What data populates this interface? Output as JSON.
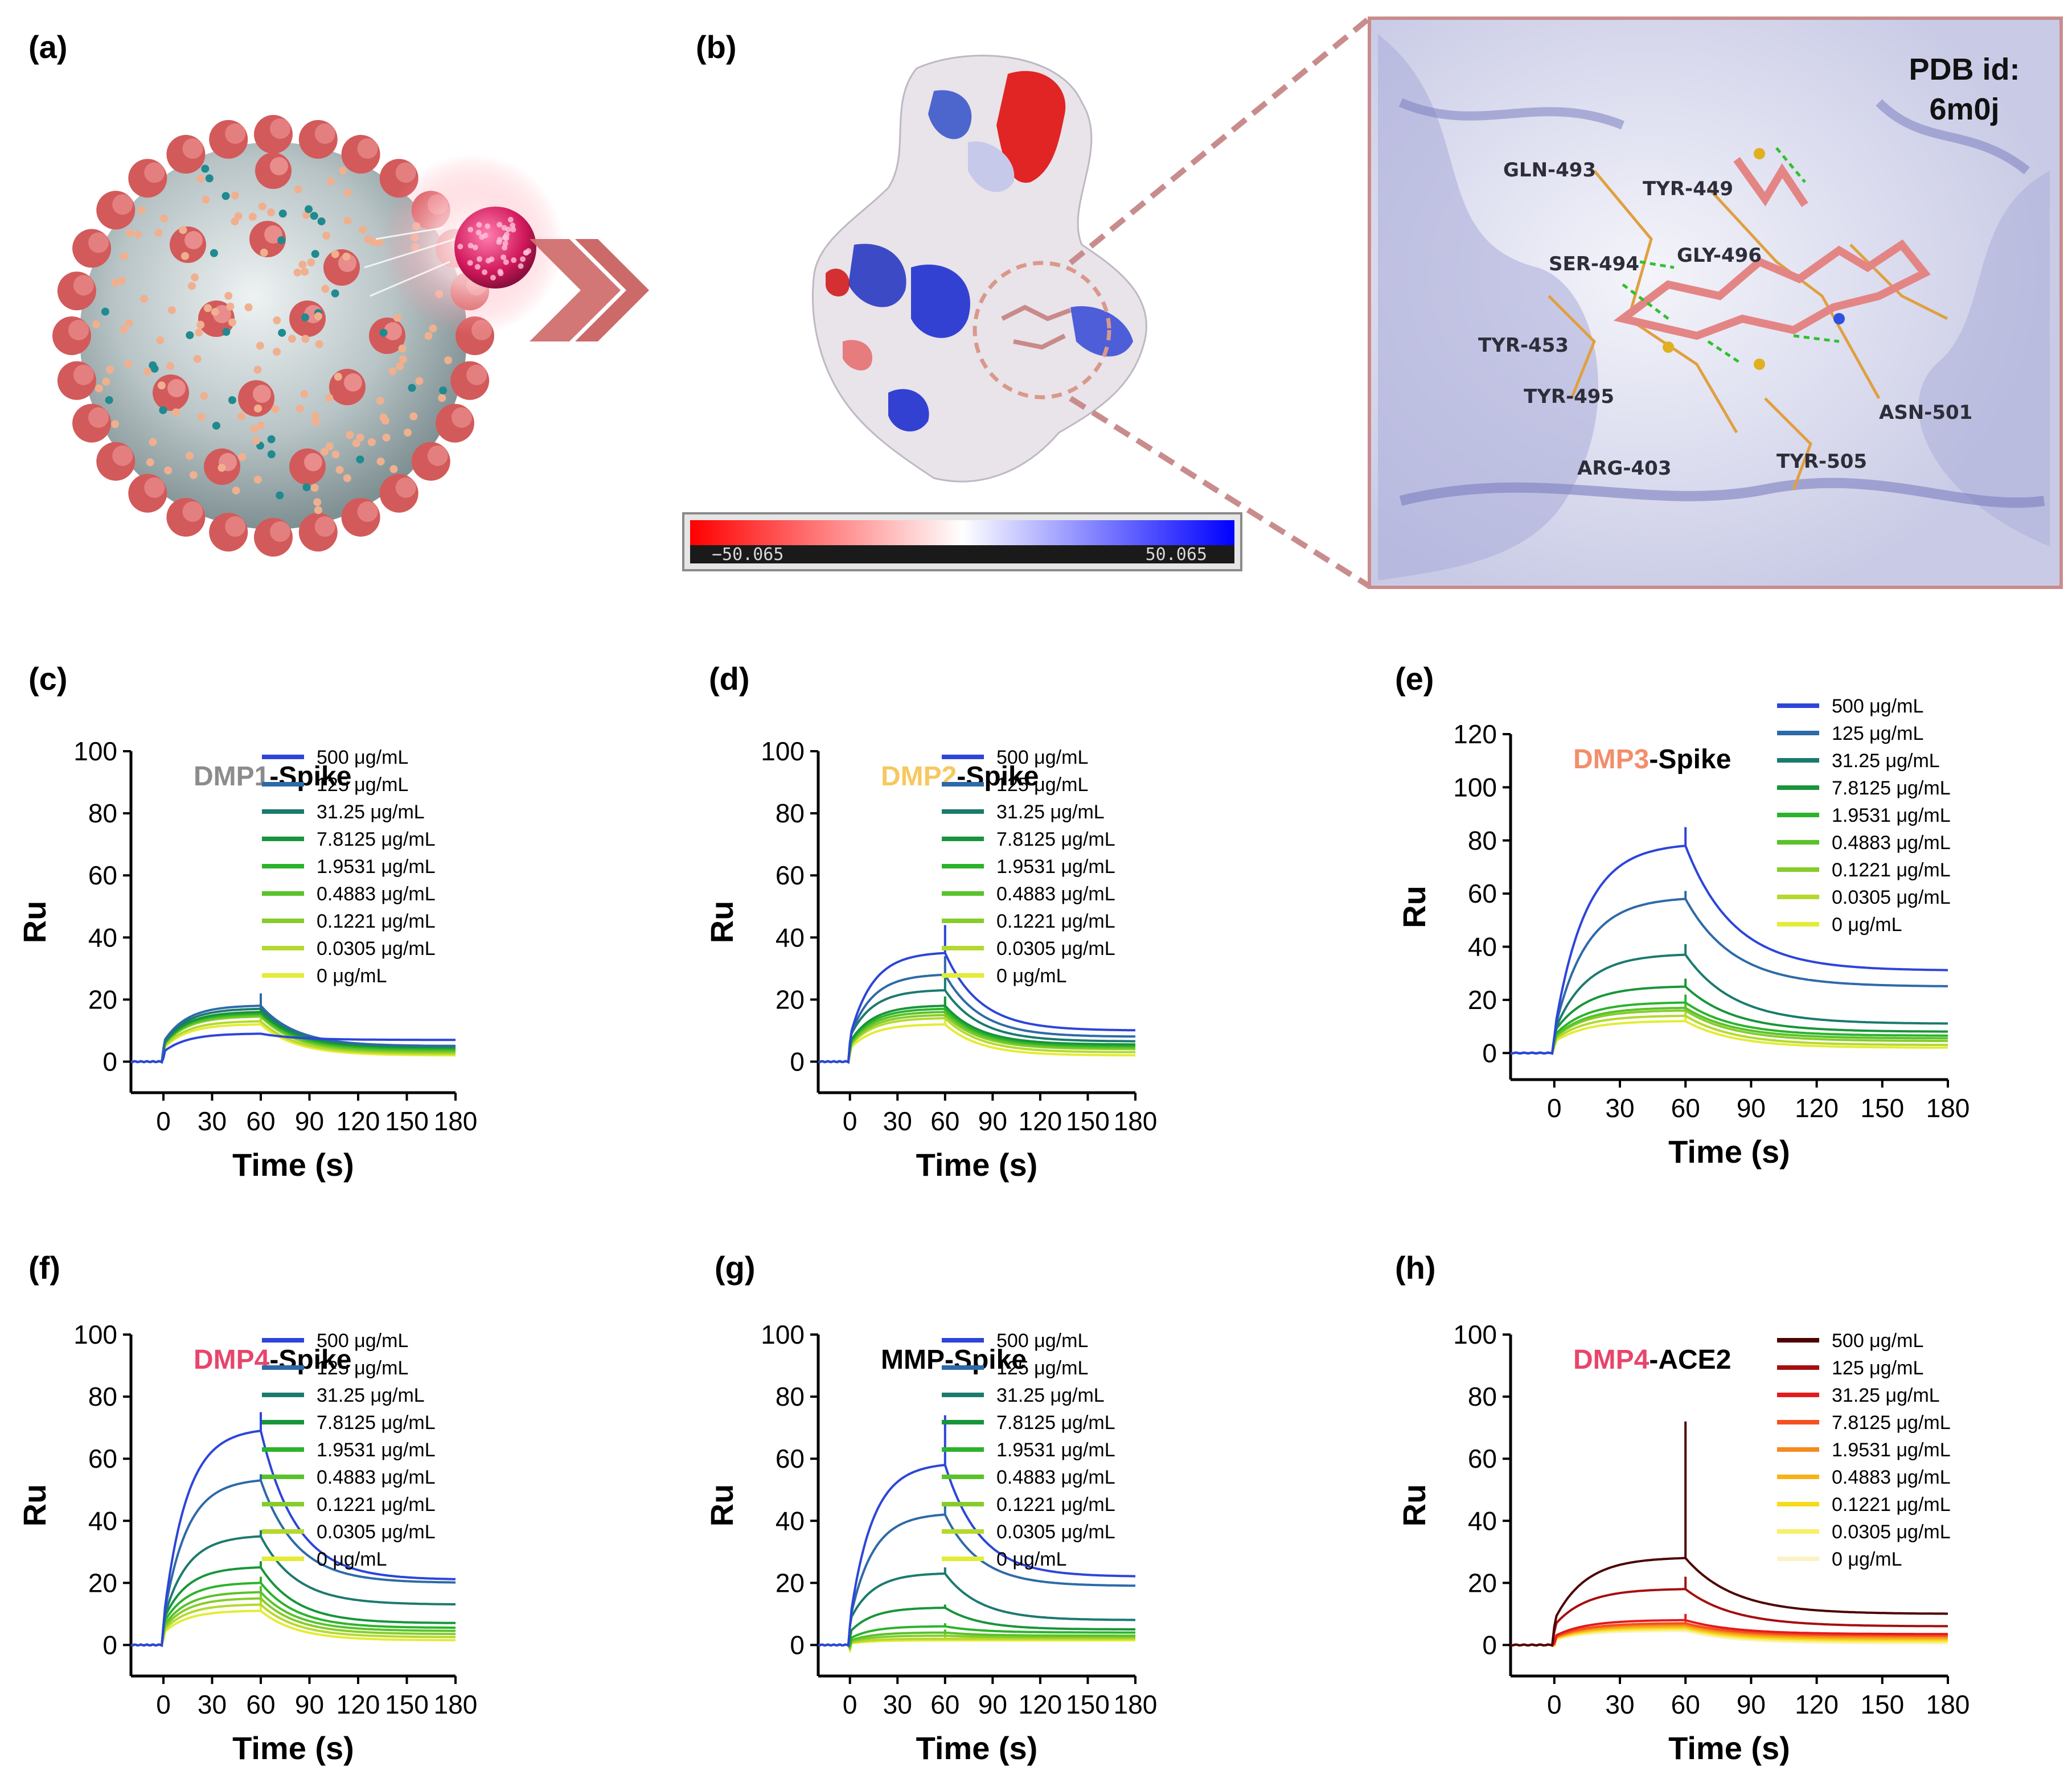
{
  "panels": {
    "a": "(a)",
    "b": "(b)",
    "c": "(c)",
    "d": "(d)",
    "e": "(e)",
    "f": "(f)",
    "g": "(g)",
    "h": "(h)"
  },
  "colorbar": {
    "min_label": "−50.065",
    "max_label": "50.065",
    "min": -50.065,
    "max": 50.065,
    "colors": [
      "#ff0000",
      "#ffffff",
      "#0000ff"
    ]
  },
  "pdb": {
    "line1": "PDB id:",
    "line2": "6m0j"
  },
  "residues": [
    "GLN-493",
    "TYR-449",
    "SER-494",
    "GLY-496",
    "TYR-453",
    "TYR-495",
    "ASN-501",
    "ARG-403",
    "TYR-505"
  ],
  "colors": {
    "frame": "#c98c8c",
    "dmp1": "#8c8c8c",
    "dmp2": "#f7c85f",
    "dmp3": "#f28e6b",
    "dmp4": "#e8456c",
    "black": "#000000",
    "blue_green": [
      "#2d45d9",
      "#2d6aa8",
      "#1b7a6e",
      "#18953a",
      "#2bb32b",
      "#5ac22a",
      "#86cc2b",
      "#b4d92e",
      "#e3ec36"
    ],
    "reds": [
      "#4d0000",
      "#a50f0f",
      "#e41a1c",
      "#f5501e",
      "#f58a1f",
      "#f7b21a",
      "#f7da1a",
      "#f7ef6a",
      "#fbf3c6"
    ]
  },
  "chart_data": [
    {
      "id": "c",
      "type": "line",
      "title_prefix": "DMP1",
      "title_suffix": "-Spike",
      "prefix_color": "#8c8c8c",
      "xlabel": "Time (s)",
      "ylabel": "Ru",
      "xlim": [
        -20,
        180
      ],
      "ylim": [
        -10,
        100
      ],
      "xticks": [
        0,
        30,
        60,
        90,
        120,
        150,
        180
      ],
      "yticks": [
        0,
        20,
        40,
        60,
        80,
        100
      ],
      "legend_position": "top-right",
      "palette": "blue_green",
      "series": [
        {
          "name": "500 μg/mL",
          "assoc": 9,
          "dissoc": 7,
          "spike": 0
        },
        {
          "name": "125 μg/mL",
          "assoc": 18,
          "dissoc": 5,
          "spike": 4
        },
        {
          "name": "31.25 μg/mL",
          "assoc": 17,
          "dissoc": 5,
          "spike": 3
        },
        {
          "name": "7.8125 μg/mL",
          "assoc": 16,
          "dissoc": 4.5,
          "spike": 3
        },
        {
          "name": "1.9531 μg/mL",
          "assoc": 15.5,
          "dissoc": 4,
          "spike": 3
        },
        {
          "name": "0.4883 μg/mL",
          "assoc": 15,
          "dissoc": 3.5,
          "spike": 2
        },
        {
          "name": "0.1221 μg/mL",
          "assoc": 14.5,
          "dissoc": 3,
          "spike": 2
        },
        {
          "name": "0.0305 μg/mL",
          "assoc": 13,
          "dissoc": 2.5,
          "spike": 2
        },
        {
          "name": "0 μg/mL",
          "assoc": 12,
          "dissoc": 2,
          "spike": 2
        }
      ]
    },
    {
      "id": "d",
      "type": "line",
      "title_prefix": "DMP2",
      "title_suffix": "-Spike",
      "prefix_color": "#f7c85f",
      "xlabel": "Time (s)",
      "ylabel": "Ru",
      "xlim": [
        -20,
        180
      ],
      "ylim": [
        -10,
        100
      ],
      "xticks": [
        0,
        30,
        60,
        90,
        120,
        150,
        180
      ],
      "yticks": [
        0,
        20,
        40,
        60,
        80,
        100
      ],
      "legend_position": "top-right",
      "palette": "blue_green",
      "series": [
        {
          "name": "500 μg/mL",
          "assoc": 35,
          "dissoc": 10,
          "spike": 9
        },
        {
          "name": "125 μg/mL",
          "assoc": 28,
          "dissoc": 8,
          "spike": 6
        },
        {
          "name": "31.25 μg/mL",
          "assoc": 23,
          "dissoc": 6.5,
          "spike": 4
        },
        {
          "name": "7.8125 μg/mL",
          "assoc": 18,
          "dissoc": 5.5,
          "spike": 3
        },
        {
          "name": "1.9531 μg/mL",
          "assoc": 17,
          "dissoc": 5,
          "spike": 3
        },
        {
          "name": "0.4883 μg/mL",
          "assoc": 16,
          "dissoc": 4.5,
          "spike": 2
        },
        {
          "name": "0.1221 μg/mL",
          "assoc": 15,
          "dissoc": 4,
          "spike": 2
        },
        {
          "name": "0.0305 μg/mL",
          "assoc": 14,
          "dissoc": 3,
          "spike": 2
        },
        {
          "name": "0 μg/mL",
          "assoc": 12,
          "dissoc": 2,
          "spike": 2
        }
      ]
    },
    {
      "id": "e",
      "type": "line",
      "title_prefix": "DMP3",
      "title_suffix": "-Spike",
      "prefix_color": "#f28e6b",
      "xlabel": "Time (s)",
      "ylabel": "Ru",
      "xlim": [
        -20,
        180
      ],
      "ylim": [
        -10,
        120
      ],
      "xticks": [
        0,
        30,
        60,
        90,
        120,
        150,
        180
      ],
      "yticks": [
        0,
        20,
        40,
        60,
        80,
        100,
        120
      ],
      "legend_position": "top-right",
      "palette": "blue_green",
      "series": [
        {
          "name": "500 μg/mL",
          "assoc": 78,
          "dissoc": 31,
          "spike": 7
        },
        {
          "name": "125 μg/mL",
          "assoc": 58,
          "dissoc": 25,
          "spike": 3
        },
        {
          "name": "31.25 μg/mL",
          "assoc": 37,
          "dissoc": 11,
          "spike": 4
        },
        {
          "name": "7.8125 μg/mL",
          "assoc": 25,
          "dissoc": 8,
          "spike": 3
        },
        {
          "name": "1.9531 μg/mL",
          "assoc": 19,
          "dissoc": 6.5,
          "spike": 3
        },
        {
          "name": "0.4883 μg/mL",
          "assoc": 17,
          "dissoc": 5.5,
          "spike": 2
        },
        {
          "name": "0.1221 μg/mL",
          "assoc": 16,
          "dissoc": 4.5,
          "spike": 2
        },
        {
          "name": "0.0305 μg/mL",
          "assoc": 14,
          "dissoc": 3,
          "spike": 2
        },
        {
          "name": "0 μg/mL",
          "assoc": 12,
          "dissoc": 2,
          "spike": 2
        }
      ]
    },
    {
      "id": "f",
      "type": "line",
      "title_prefix": "DMP4",
      "title_suffix": "-Spike",
      "prefix_color": "#e8456c",
      "xlabel": "Time (s)",
      "ylabel": "Ru",
      "xlim": [
        -20,
        180
      ],
      "ylim": [
        -10,
        100
      ],
      "xticks": [
        0,
        30,
        60,
        90,
        120,
        150,
        180
      ],
      "yticks": [
        0,
        20,
        40,
        60,
        80,
        100
      ],
      "legend_position": "top-right",
      "palette": "blue_green",
      "series": [
        {
          "name": "500 μg/mL",
          "assoc": 69,
          "dissoc": 21,
          "spike": 6
        },
        {
          "name": "125 μg/mL",
          "assoc": 53,
          "dissoc": 20,
          "spike": 2
        },
        {
          "name": "31.25 μg/mL",
          "assoc": 35,
          "dissoc": 13,
          "spike": 2
        },
        {
          "name": "7.8125 μg/mL",
          "assoc": 25,
          "dissoc": 7,
          "spike": 2
        },
        {
          "name": "1.9531 μg/mL",
          "assoc": 20,
          "dissoc": 5.5,
          "spike": 2
        },
        {
          "name": "0.4883 μg/mL",
          "assoc": 17,
          "dissoc": 4.5,
          "spike": 2
        },
        {
          "name": "0.1221 μg/mL",
          "assoc": 15,
          "dissoc": 3.5,
          "spike": 2
        },
        {
          "name": "0.0305 μg/mL",
          "assoc": 13,
          "dissoc": 2.5,
          "spike": 2
        },
        {
          "name": "0 μg/mL",
          "assoc": 11,
          "dissoc": 1.5,
          "spike": 2
        }
      ]
    },
    {
      "id": "g",
      "type": "line",
      "title_prefix": "MMP",
      "title_suffix": "-Spike",
      "prefix_color": "#000000",
      "xlabel": "Time (s)",
      "ylabel": "Ru",
      "xlim": [
        -20,
        180
      ],
      "ylim": [
        -10,
        100
      ],
      "xticks": [
        0,
        30,
        60,
        90,
        120,
        150,
        180
      ],
      "yticks": [
        0,
        20,
        40,
        60,
        80,
        100
      ],
      "legend_position": "top-right",
      "palette": "blue_green",
      "series": [
        {
          "name": "500 μg/mL",
          "assoc": 58,
          "dissoc": 22,
          "spike": 16
        },
        {
          "name": "125 μg/mL",
          "assoc": 42,
          "dissoc": 19,
          "spike": 4
        },
        {
          "name": "31.25 μg/mL",
          "assoc": 23,
          "dissoc": 8,
          "spike": 2
        },
        {
          "name": "7.8125 μg/mL",
          "assoc": 12,
          "dissoc": 5,
          "spike": 1
        },
        {
          "name": "1.9531 μg/mL",
          "assoc": 6,
          "dissoc": 4,
          "spike": 1
        },
        {
          "name": "0.4883 μg/mL",
          "assoc": 4,
          "dissoc": 3,
          "spike": 1
        },
        {
          "name": "0.1221 μg/mL",
          "assoc": 3,
          "dissoc": 2.5,
          "spike": 1
        },
        {
          "name": "0.0305 μg/mL",
          "assoc": 2,
          "dissoc": 2,
          "spike": 1
        },
        {
          "name": "0 μg/mL",
          "assoc": 1.5,
          "dissoc": 1.5,
          "spike": 1
        }
      ]
    },
    {
      "id": "h",
      "type": "line",
      "title_prefix": "DMP4",
      "title_suffix": "-ACE2",
      "prefix_color": "#e8456c",
      "xlabel": "Time (s)",
      "ylabel": "Ru",
      "xlim": [
        -20,
        180
      ],
      "ylim": [
        -10,
        100
      ],
      "xticks": [
        0,
        30,
        60,
        90,
        120,
        150,
        180
      ],
      "yticks": [
        0,
        20,
        40,
        60,
        80,
        100
      ],
      "legend_position": "top-right",
      "palette": "reds",
      "series": [
        {
          "name": "500 μg/mL",
          "assoc": 28,
          "dissoc": 10,
          "spike": 44
        },
        {
          "name": "125 μg/mL",
          "assoc": 18,
          "dissoc": 6,
          "spike": 4
        },
        {
          "name": "31.25 μg/mL",
          "assoc": 8,
          "dissoc": 3.5,
          "spike": 2
        },
        {
          "name": "7.8125 μg/mL",
          "assoc": 7,
          "dissoc": 3,
          "spike": 1
        },
        {
          "name": "1.9531 μg/mL",
          "assoc": 6.5,
          "dissoc": 2.5,
          "spike": 1
        },
        {
          "name": "0.4883 μg/mL",
          "assoc": 6,
          "dissoc": 2,
          "spike": 1
        },
        {
          "name": "0.1221 μg/mL",
          "assoc": 5.5,
          "dissoc": 1.5,
          "spike": 1
        },
        {
          "name": "0.0305 μg/mL",
          "assoc": 5,
          "dissoc": 1,
          "spike": 1
        },
        {
          "name": "0 μg/mL",
          "assoc": 4.5,
          "dissoc": 0.5,
          "spike": 1
        }
      ]
    }
  ]
}
